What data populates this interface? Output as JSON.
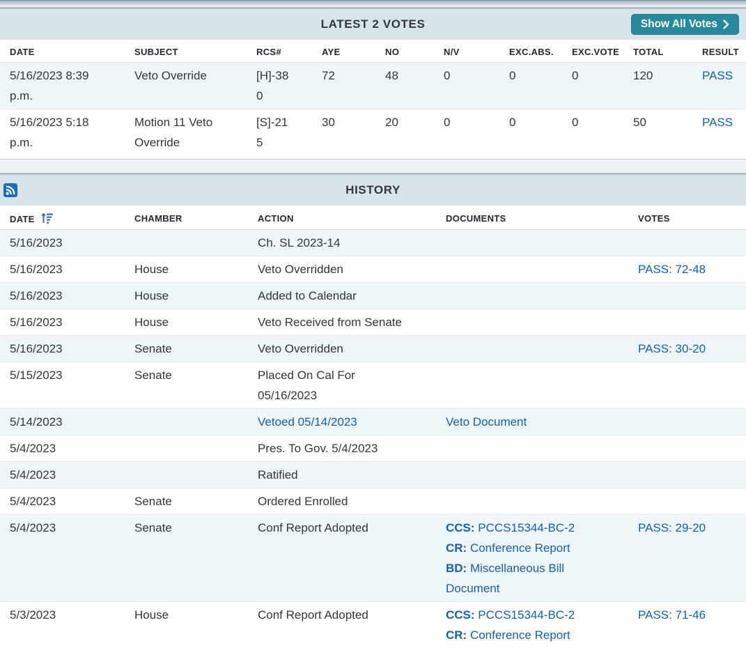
{
  "votes_section": {
    "title": "LATEST 2 VOTES",
    "show_all_button": {
      "label": "Show All Votes",
      "icon": "chevron-right"
    },
    "columns": [
      "DATE",
      "SUBJECT",
      "RCS#",
      "AYE",
      "NO",
      "N/V",
      "EXC.ABS.",
      "EXC.VOTE",
      "TOTAL",
      "RESULT"
    ],
    "rows": [
      {
        "date": "5/16/2023 8:39 p.m.",
        "subject": "Veto Override",
        "rcs": "[H]-380",
        "aye": "72",
        "no": "48",
        "nv": "0",
        "exc_abs": "0",
        "exc_vote": "0",
        "total": "120",
        "result": "PASS"
      },
      {
        "date": "5/16/2023 5:18 p.m.",
        "subject": "Motion 11 Veto Override",
        "rcs": "[S]-215",
        "aye": "30",
        "no": "20",
        "nv": "0",
        "exc_abs": "0",
        "exc_vote": "0",
        "total": "50",
        "result": "PASS"
      }
    ]
  },
  "history_section": {
    "title": "HISTORY",
    "rss_icon": "rss-feed",
    "sort": {
      "column": "DATE",
      "direction": "ascending",
      "icon": "sort-amount-up"
    },
    "columns": [
      "DATE",
      "CHAMBER",
      "ACTION",
      "DOCUMENTS",
      "VOTES"
    ],
    "rows": [
      {
        "date": "5/16/2023",
        "chamber": "",
        "action": "Ch. SL 2023-14",
        "action_is_link": false,
        "documents": [],
        "votes": ""
      },
      {
        "date": "5/16/2023",
        "chamber": "House",
        "action": "Veto Overridden",
        "action_is_link": false,
        "documents": [],
        "votes": "PASS: 72-48"
      },
      {
        "date": "5/16/2023",
        "chamber": "House",
        "action": "Added to Calendar",
        "action_is_link": false,
        "documents": [],
        "votes": ""
      },
      {
        "date": "5/16/2023",
        "chamber": "House",
        "action": "Veto Received from Senate",
        "action_is_link": false,
        "documents": [],
        "votes": ""
      },
      {
        "date": "5/16/2023",
        "chamber": "Senate",
        "action": "Veto Overridden",
        "action_is_link": false,
        "documents": [],
        "votes": "PASS: 30-20"
      },
      {
        "date": "5/15/2023",
        "chamber": "Senate",
        "action": "Placed On Cal For 05/16/2023",
        "action_is_link": false,
        "documents": [],
        "votes": ""
      },
      {
        "date": "5/14/2023",
        "chamber": "",
        "action": "Vetoed 05/14/2023",
        "action_is_link": true,
        "documents": [
          {
            "prefix": "",
            "label": "Veto Document"
          }
        ],
        "votes": ""
      },
      {
        "date": "5/4/2023",
        "chamber": "",
        "action": "Pres. To Gov. 5/4/2023",
        "action_is_link": false,
        "documents": [],
        "votes": ""
      },
      {
        "date": "5/4/2023",
        "chamber": "",
        "action": "Ratified",
        "action_is_link": false,
        "documents": [],
        "votes": ""
      },
      {
        "date": "5/4/2023",
        "chamber": "Senate",
        "action": "Ordered Enrolled",
        "action_is_link": false,
        "documents": [],
        "votes": ""
      },
      {
        "date": "5/4/2023",
        "chamber": "Senate",
        "action": "Conf Report Adopted",
        "action_is_link": false,
        "documents": [
          {
            "prefix": "CCS:",
            "label": "PCCS15344-BC-2"
          },
          {
            "prefix": "CR:",
            "label": "Conference Report"
          },
          {
            "prefix": "BD:",
            "label": "Miscellaneous Bill Document"
          }
        ],
        "votes": "PASS: 29-20"
      },
      {
        "date": "5/3/2023",
        "chamber": "House",
        "action": "Conf Report Adopted",
        "action_is_link": false,
        "documents": [
          {
            "prefix": "CCS:",
            "label": "PCCS15344-BC-2"
          },
          {
            "prefix": "CR:",
            "label": "Conference Report"
          }
        ],
        "votes": "PASS: 71-46"
      }
    ]
  },
  "colors": {
    "panel_header_bg": "#d7e5eb",
    "stripe_row_bg": "#eef6fa",
    "link_blue": "#1560ad",
    "button_teal": "#28899d",
    "rss_blue": "#1a6cb8",
    "divider_bg": "#eef1f5"
  }
}
